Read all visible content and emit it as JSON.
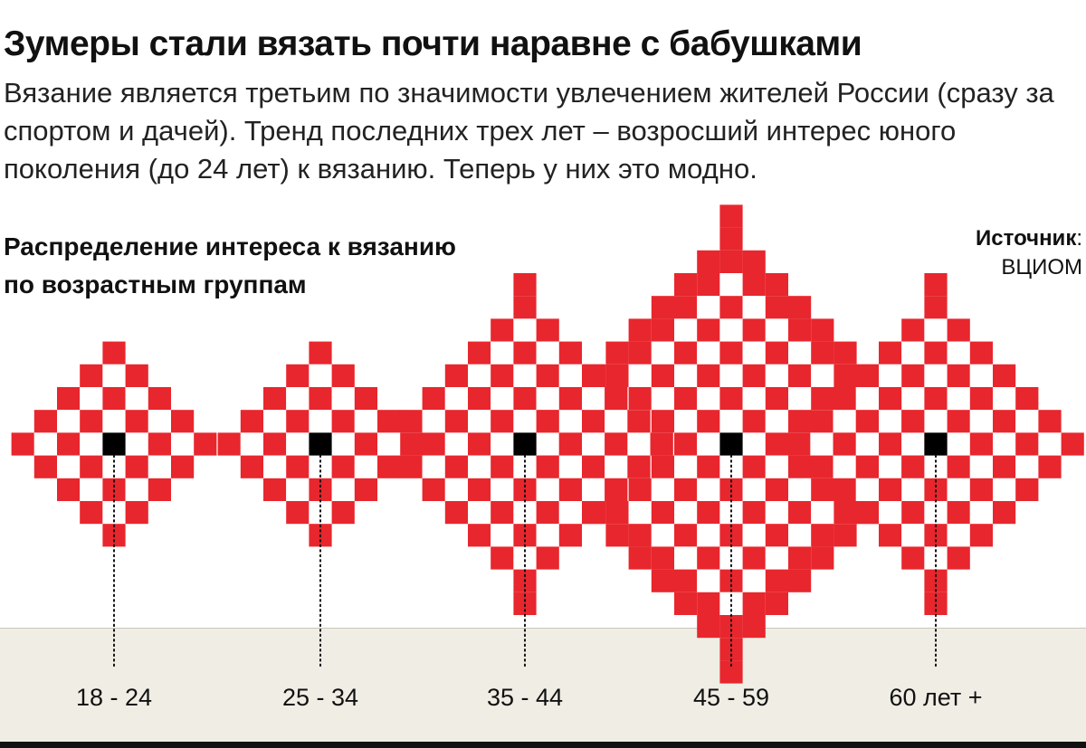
{
  "header": {
    "title": "Зумеры стали вязать почти наравне с бабушками",
    "lede": "Вязание является третьим по значимости увлечением жителей России (сразу за спортом и дачей). Тренд последних трех лет – возросший интерес юного поколения (до 24 лет) к вязанию. Теперь у них это модно."
  },
  "source": {
    "label": "Источник",
    "colon": ":",
    "name": "ВЦИОМ"
  },
  "colors": {
    "accent": "#e8262d",
    "center": "#000000",
    "ground": "#efede4"
  },
  "chart_data": {
    "type": "proportional-pattern",
    "title": "Распределение интереса к вязанию по возрастным группам",
    "subtitle_lines": [
      "Распределение интереса к вязанию",
      "по возрастным группам"
    ],
    "categories": [
      "18 - 24",
      "25 - 34",
      "35 - 44",
      "45 - 59",
      "60 лет +"
    ],
    "values": [
      4,
      4,
      6,
      9,
      6
    ],
    "value_unit": "relative pattern radius (cells)",
    "gridlines": false,
    "legend": "none"
  }
}
